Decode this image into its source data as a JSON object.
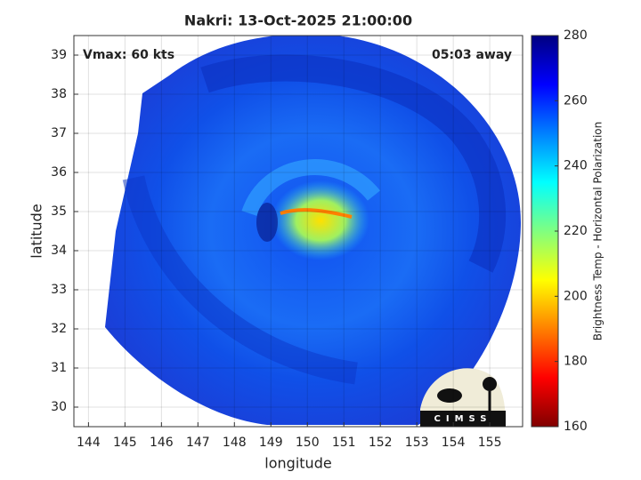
{
  "chart_data": {
    "type": "image",
    "title": "Nakri: 13-Oct-2025 21:00:00",
    "annotations": [
      "Vmax: 60 kts",
      "05:03 away"
    ],
    "xlabel": "longitude",
    "ylabel": "latitude",
    "xlim": [
      143.6,
      155.9
    ],
    "ylim": [
      29.5,
      39.5
    ],
    "xticks": [
      144,
      145,
      146,
      147,
      148,
      149,
      150,
      151,
      152,
      153,
      154,
      155
    ],
    "yticks": [
      30,
      31,
      32,
      33,
      34,
      35,
      36,
      37,
      38,
      39
    ],
    "grid": true,
    "colorbar": {
      "label": "Brightness Temp - Horizontal Polarization",
      "lim": [
        160,
        280
      ],
      "ticks": [
        160,
        180,
        200,
        220,
        240,
        260,
        280
      ],
      "colormap": [
        "#800000",
        "#ff0000",
        "#ff8000",
        "#ffff00",
        "#80ff80",
        "#00ffff",
        "#0080ff",
        "#0000ff",
        "#000080"
      ]
    },
    "logo_text": "CIMSS"
  }
}
